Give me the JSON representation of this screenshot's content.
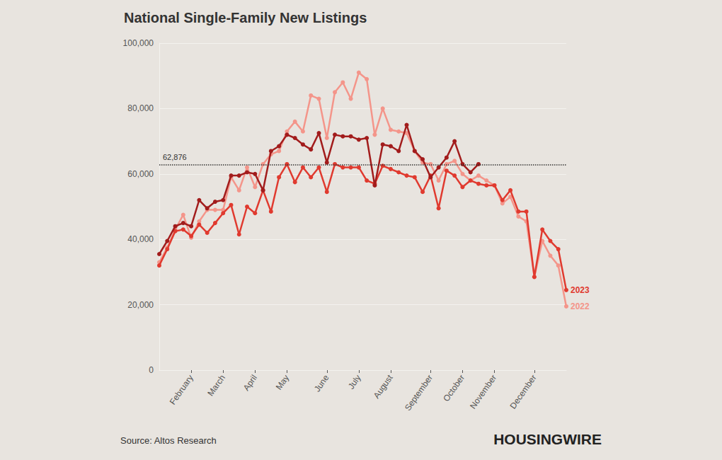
{
  "chart_data": {
    "type": "line",
    "title": "National Single-Family New Listings",
    "categories": [
      null,
      null,
      null,
      null,
      "February",
      null,
      null,
      null,
      "March",
      null,
      null,
      null,
      "April",
      null,
      null,
      null,
      "May",
      null,
      null,
      null,
      null,
      "June",
      null,
      null,
      null,
      "July",
      null,
      null,
      null,
      "August",
      null,
      null,
      null,
      null,
      "September",
      null,
      null,
      null,
      "October",
      null,
      null,
      null,
      "November",
      null,
      null,
      null,
      null,
      "December",
      null,
      null,
      null,
      null
    ],
    "series": [
      {
        "name": "2022",
        "color": "#f4958a",
        "values": [
          33000,
          37500,
          43000,
          47500,
          40500,
          45500,
          49000,
          49000,
          49000,
          59000,
          55000,
          62000,
          56000,
          63000,
          66000,
          67000,
          73000,
          76000,
          73000,
          84000,
          83000,
          71000,
          85000,
          88000,
          83000,
          91000,
          89000,
          72000,
          80000,
          73500,
          73000,
          72500,
          67000,
          63500,
          63000,
          58000,
          63000,
          64000,
          60000,
          58000,
          59500,
          58000,
          56500,
          51000,
          53000,
          47000,
          45500,
          28500,
          39500,
          35000,
          32000,
          19500
        ]
      },
      {
        "name": "2023",
        "color": "#e03a2f",
        "values": [
          32000,
          37000,
          42500,
          43000,
          41000,
          44500,
          42000,
          45000,
          48000,
          50500,
          41500,
          50000,
          48000,
          55000,
          48500,
          59000,
          63000,
          57500,
          62000,
          59000,
          62000,
          54500,
          63000,
          62000,
          62000,
          62000,
          58000,
          57000,
          62500,
          61500,
          60500,
          59500,
          59000,
          54500,
          59500,
          49500,
          61000,
          59500,
          56000,
          58000,
          57000,
          56500,
          56500,
          52000,
          55000,
          48500,
          48500,
          28500,
          43000,
          39500,
          37000,
          24500
        ]
      },
      {
        "color": "#a21c1c",
        "values": [
          35500,
          39500,
          44000,
          45000,
          44000,
          52000,
          49500,
          51500,
          52000,
          59500,
          59500,
          60500,
          60000,
          55000,
          67000,
          68500,
          72000,
          71000,
          69000,
          67500,
          72500,
          63500,
          72000,
          71500,
          71500,
          70500,
          71000,
          56500,
          69000,
          68500,
          67000,
          75000,
          67000,
          64500,
          59000,
          62000,
          65000,
          70000,
          63000,
          60500,
          63000,
          null,
          null,
          null,
          null,
          null,
          null,
          null,
          null,
          null,
          null,
          null
        ]
      }
    ],
    "ylim": [
      0,
      100000
    ],
    "yticks": [
      0,
      {
        "value": 20000,
        "label": "20,000"
      },
      {
        "value": 40000,
        "label": "40,000"
      },
      {
        "value": 60000,
        "label": "60,000"
      },
      {
        "value": 80000,
        "label": "80,000"
      },
      {
        "value": 100000,
        "label": "100,000"
      }
    ],
    "grid": true,
    "marker": "circle",
    "annotations": [
      {
        "y": 62876,
        "label": "62,876",
        "line_style": "dotted"
      }
    ],
    "source": "Source: Altos Research",
    "brand": "HOUSINGWIRE"
  }
}
